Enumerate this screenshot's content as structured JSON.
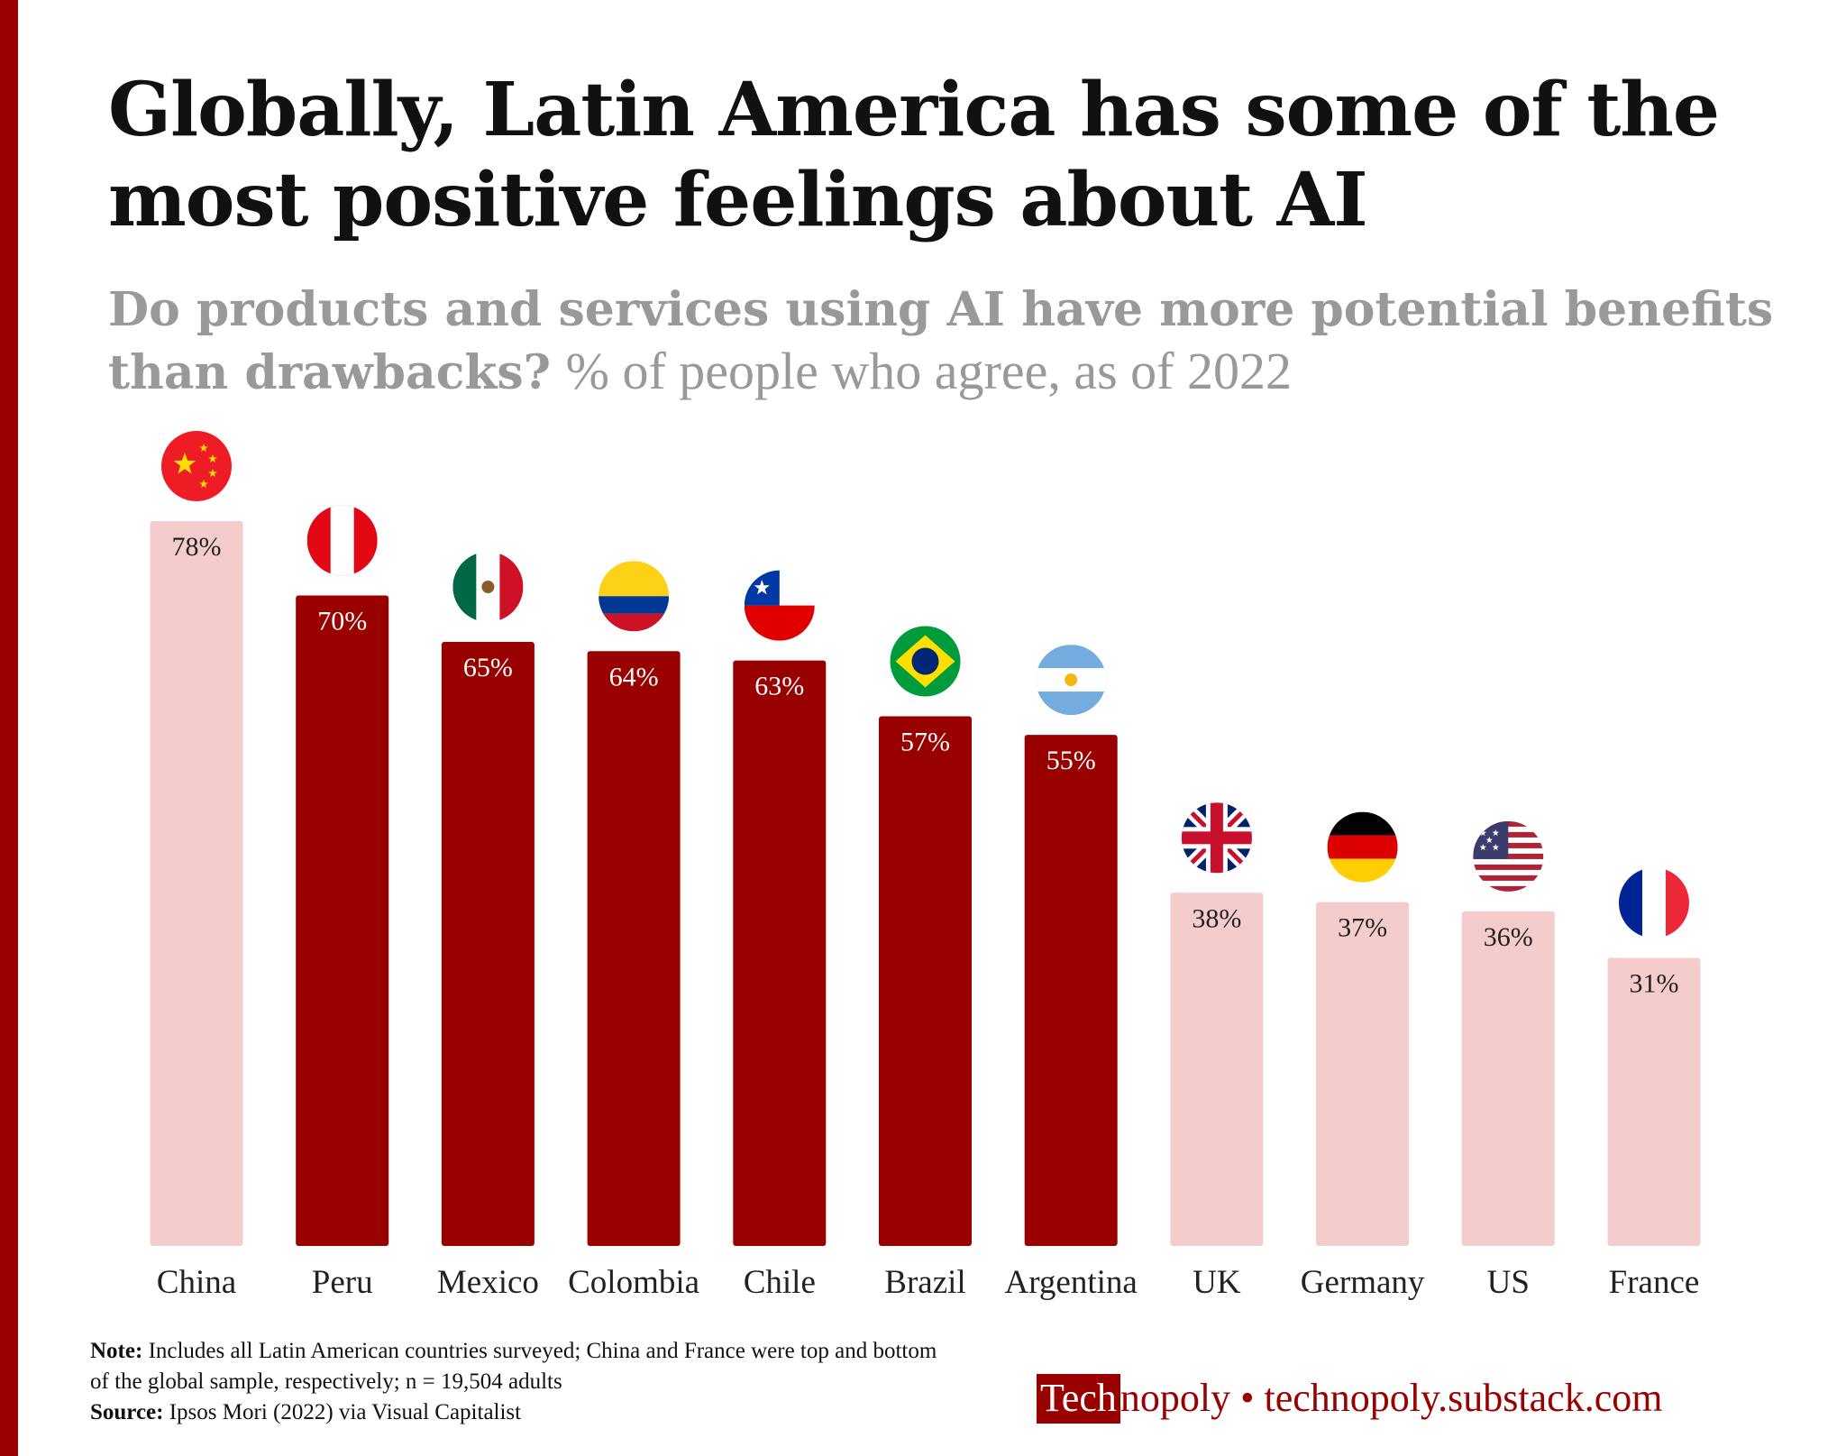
{
  "title": "Globally, Latin America has some of the most positive feelings about AI",
  "subtitle_bold": "Do products and services using AI have more potential benefits than drawbacks?",
  "subtitle_light": "% of people who agree, as of 2022",
  "chart_data": {
    "type": "bar",
    "title": "Globally, Latin America has some of the most positive feelings about AI",
    "categories": [
      "China",
      "Peru",
      "Mexico",
      "Colombia",
      "Chile",
      "Brazil",
      "Argentina",
      "UK",
      "Germany",
      "US",
      "France"
    ],
    "values": [
      78,
      70,
      65,
      64,
      63,
      57,
      55,
      38,
      37,
      36,
      31
    ],
    "data_labels": [
      "78%",
      "70%",
      "65%",
      "64%",
      "63%",
      "57%",
      "55%",
      "38%",
      "37%",
      "36%",
      "31%"
    ],
    "highlight": [
      false,
      true,
      true,
      true,
      true,
      true,
      true,
      false,
      false,
      false,
      false
    ],
    "flags": [
      "china-flag",
      "peru-flag",
      "mexico-flag",
      "colombia-flag",
      "chile-flag",
      "brazil-flag",
      "argentina-flag",
      "uk-flag",
      "germany-flag",
      "us-flag",
      "france-flag"
    ],
    "ylim": [
      0,
      80
    ],
    "grid": false,
    "colors": {
      "highlight": "#990000",
      "other": "#f4cccc"
    }
  },
  "footer": {
    "note_label": "Note:",
    "note_text": "Includes all Latin American countries surveyed; China and France were top and bottom of the global sample, respectively; n = 19,504 adults",
    "source_label": "Source:",
    "source_text": "Ipsos Mori (2022) via Visual Capitalist",
    "logo_boxed": "Tech",
    "logo_rest": "nopoly",
    "separator": "•",
    "url": "technopoly.substack.com"
  }
}
